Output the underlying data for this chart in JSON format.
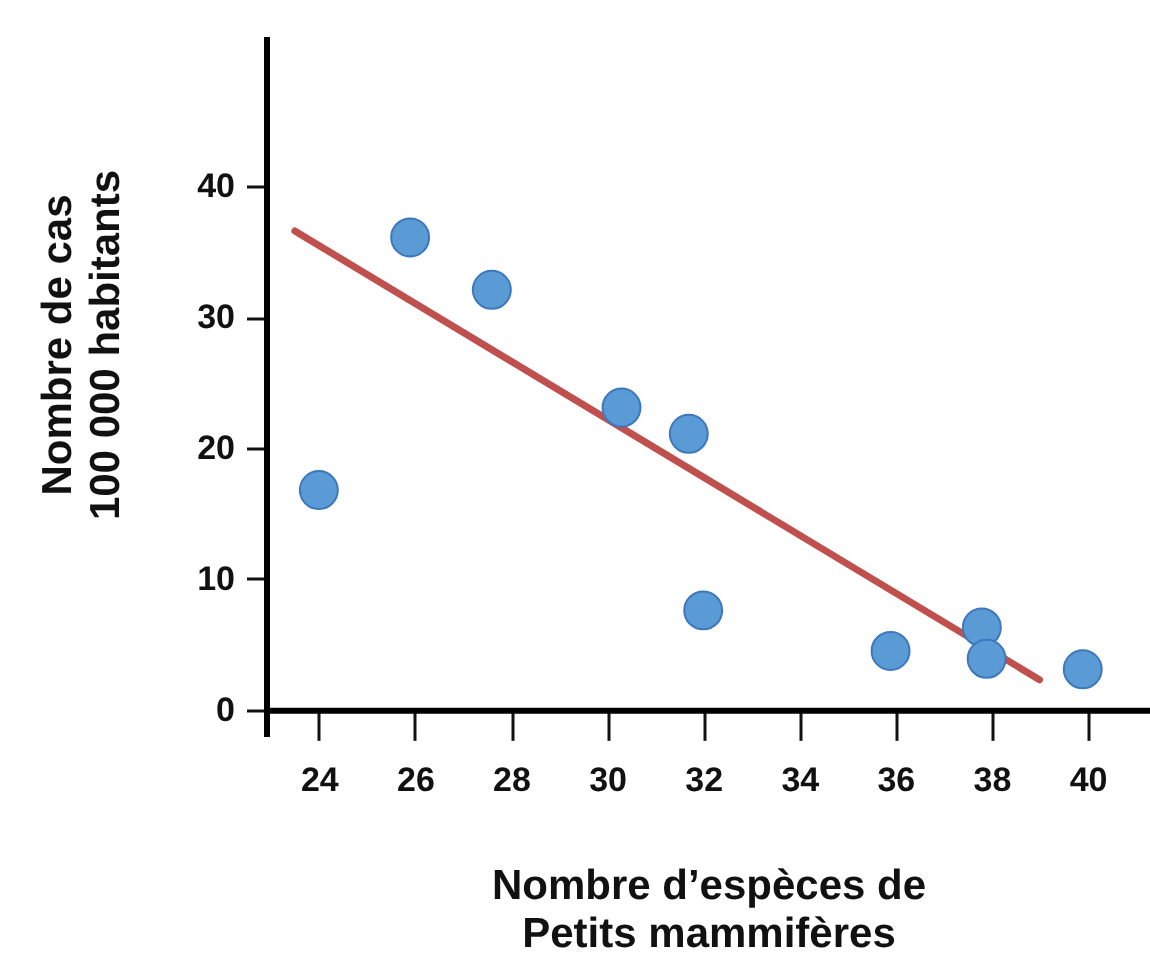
{
  "chart_data": {
    "type": "scatter",
    "xlabel": "Nombre d’espèces de\nPetits mammifères",
    "ylabel": "Nombre de cas\n100 000 habitants",
    "xlim": [
      22.9,
      41.3
    ],
    "ylim": [
      -2,
      51.5
    ],
    "xticks": [
      24,
      26,
      28,
      30,
      32,
      34,
      36,
      38,
      40
    ],
    "yticks": [
      0,
      10,
      20,
      30,
      40
    ],
    "grid": false,
    "series": [
      {
        "type": "line",
        "color": "#c0504d",
        "x": [
          23.5,
          39.0
        ],
        "values": [
          36.6,
          2.3
        ]
      },
      {
        "marker": "circle",
        "color": "#5b9bd5",
        "x": [
          24,
          25.9,
          27.6,
          30.3,
          31.7,
          32,
          35.9,
          37.8,
          37.9,
          39.9
        ],
        "values": [
          16.8,
          36.1,
          32.1,
          23.1,
          21.1,
          7.6,
          4.5,
          6.3,
          3.9,
          3.1
        ]
      }
    ]
  }
}
